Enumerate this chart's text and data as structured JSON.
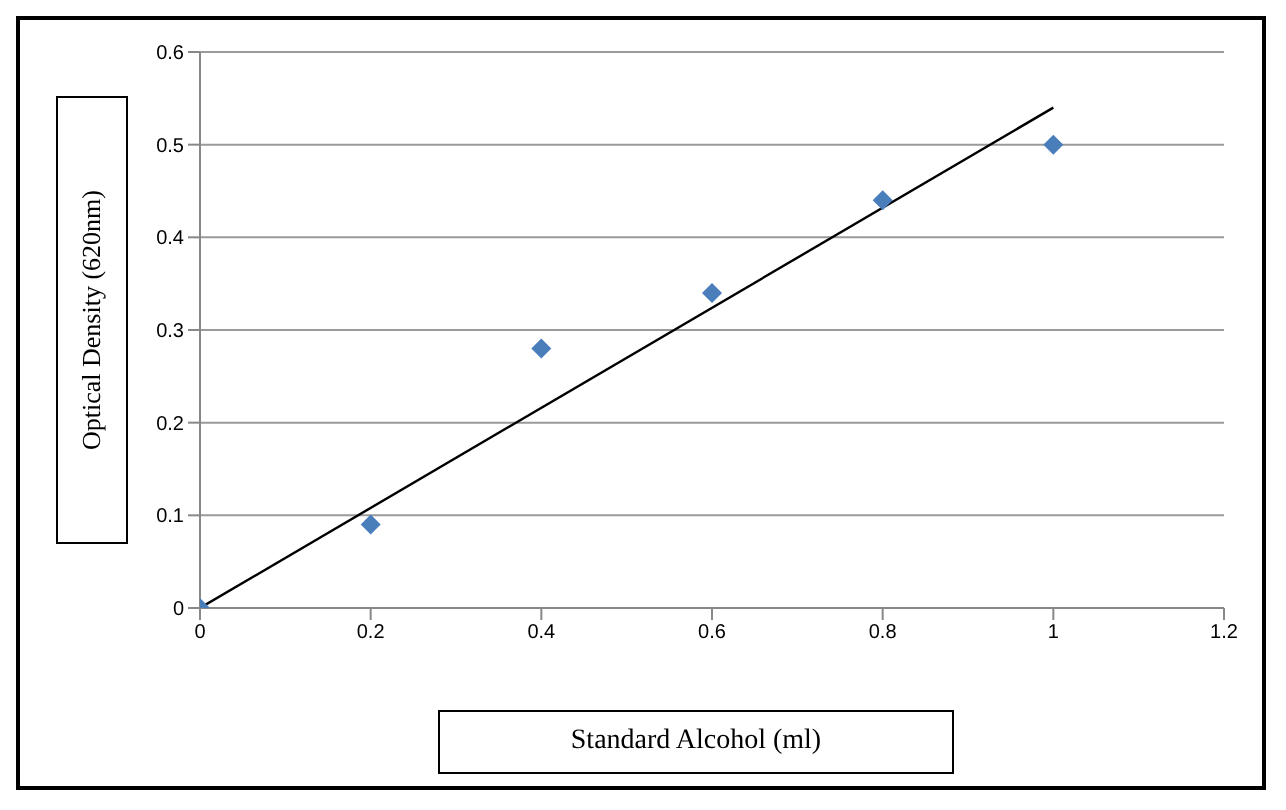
{
  "chart_data": {
    "type": "scatter",
    "xlabel": "Standard Alcohol (ml)",
    "ylabel": "Optical Density (620nm)",
    "x": [
      0,
      0.2,
      0.4,
      0.6,
      0.8,
      1
    ],
    "series": [
      {
        "type": "scatter",
        "color": "#4a7ebb",
        "marker": "diamond",
        "values": [
          0,
          0.09,
          0.28,
          0.34,
          0.44,
          0.5
        ]
      },
      {
        "type": "line",
        "color": "#000000",
        "marker": "none",
        "x": [
          0,
          1
        ],
        "values": [
          0,
          0.54
        ]
      }
    ],
    "xlim": [
      0,
      1.2
    ],
    "xticks": [
      0,
      0.2,
      0.4,
      0.6,
      0.8,
      1,
      1.2
    ],
    "ylim": [
      0,
      0.6
    ],
    "yticks": [
      0,
      0.1,
      0.2,
      0.3,
      0.4,
      0.5,
      0.6
    ],
    "grid": "y",
    "legend": false
  }
}
